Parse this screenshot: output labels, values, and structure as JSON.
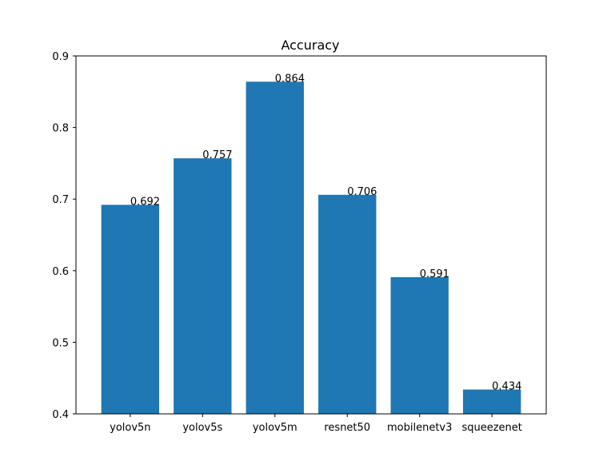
{
  "chart_data": {
    "type": "bar",
    "title": "Accuracy",
    "xlabel": "",
    "ylabel": "",
    "categories": [
      "yolov5n",
      "yolov5s",
      "yolov5m",
      "resnet50",
      "mobilenetv3",
      "squeezenet"
    ],
    "values": [
      0.692,
      0.757,
      0.864,
      0.706,
      0.591,
      0.434
    ],
    "data_labels": [
      "0.692",
      "0.757",
      "0.864",
      "0.706",
      "0.591",
      "0.434"
    ],
    "ylim": [
      0.4,
      0.9
    ],
    "yticks": [
      0.4,
      0.5,
      0.6,
      0.7,
      0.8,
      0.9
    ],
    "ytick_labels": [
      "0.4",
      "0.5",
      "0.6",
      "0.7",
      "0.8",
      "0.9"
    ],
    "grid": false,
    "legend": "none",
    "colors": {
      "bar": "#1f77b4",
      "axis": "#000000",
      "background": "#ffffff"
    }
  }
}
